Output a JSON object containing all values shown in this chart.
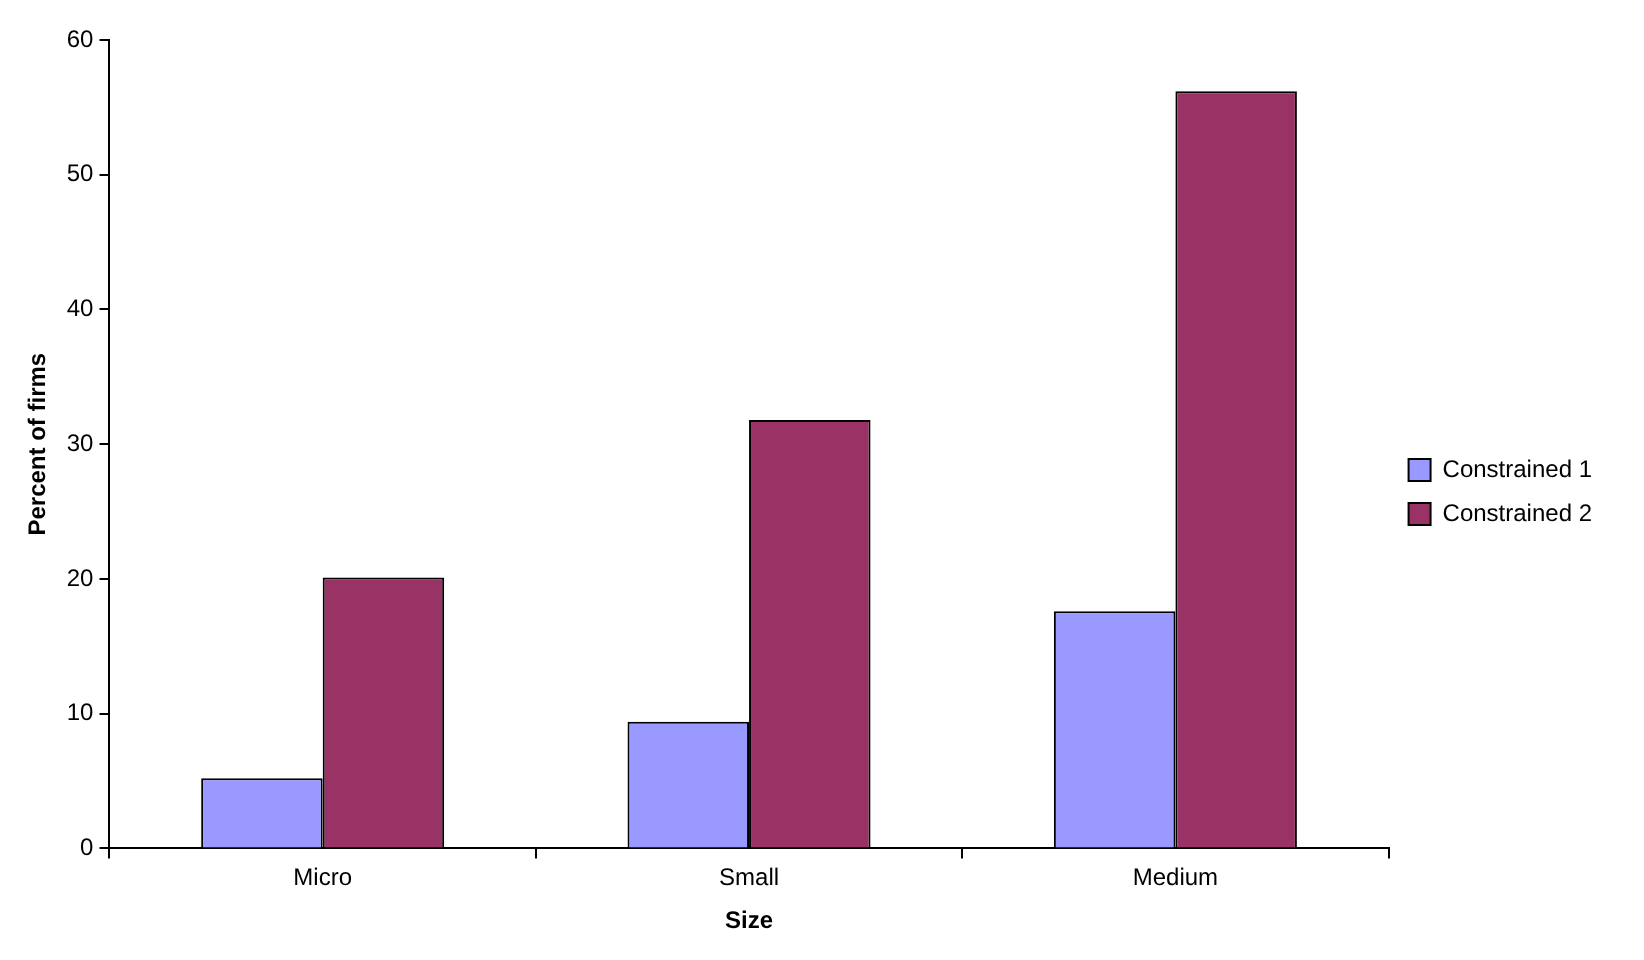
{
  "chart_data": {
    "type": "bar",
    "xlabel": "Size",
    "ylabel": "Percent of firms",
    "categories": [
      "Micro",
      "Small",
      "Medium"
    ],
    "series": [
      {
        "name": "Constrained 1",
        "color": "#9999ff",
        "values": [
          5.2,
          9.4,
          17.6
        ]
      },
      {
        "name": "Constrained 2",
        "color": "#993366",
        "values": [
          20.1,
          31.8,
          56.2
        ]
      }
    ],
    "ylim": [
      0,
      60
    ],
    "yticks": [
      0,
      10,
      20,
      30,
      40,
      50,
      60
    ],
    "grid": false,
    "legend": "right"
  }
}
